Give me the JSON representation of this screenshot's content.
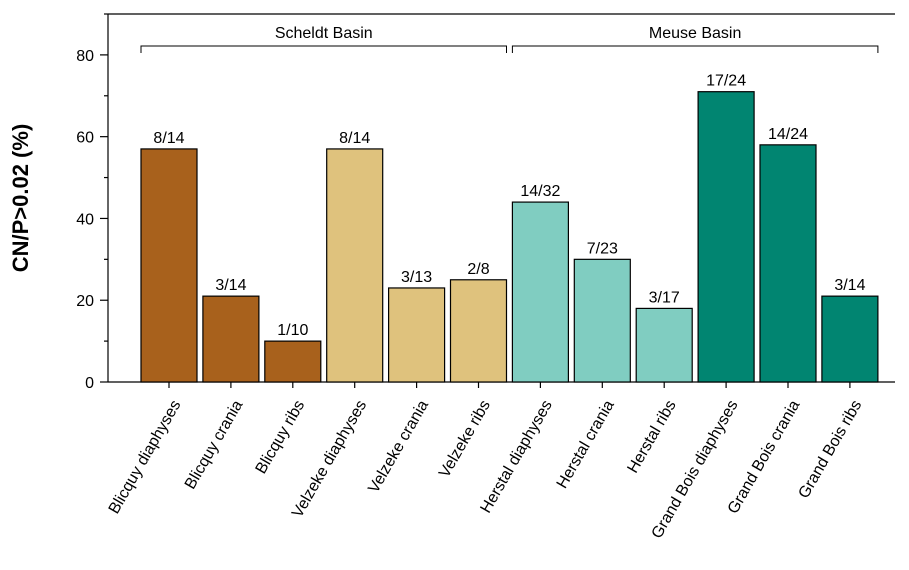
{
  "chart_data": {
    "type": "bar",
    "ylabel": "CN/P>0.02 (%)",
    "ylim": [
      0,
      90
    ],
    "yticks": [
      0,
      20,
      40,
      60,
      80
    ],
    "grid": false,
    "categories": [
      "Blicquy diaphyses",
      "Blicquy crania",
      "Blicquy ribs",
      "Velzeke diaphyses",
      "Velzeke crania",
      "Velzeke ribs",
      "Herstal diaphyses",
      "Herstal crania",
      "Herstal ribs",
      "Grand Bois diaphyses",
      "Grand Bois crania",
      "Grand Bois ribs"
    ],
    "values": [
      57,
      21,
      10,
      57,
      23,
      25,
      44,
      30,
      18,
      71,
      58,
      21
    ],
    "bar_labels": [
      "8/14",
      "3/14",
      "1/10",
      "8/14",
      "3/13",
      "2/8",
      "14/32",
      "7/23",
      "3/17",
      "17/24",
      "14/24",
      "3/14"
    ],
    "colors": [
      "#a8611c",
      "#a8611c",
      "#a8611c",
      "#dfc27d",
      "#dfc27d",
      "#dfc27d",
      "#80cdc1",
      "#80cdc1",
      "#80cdc1",
      "#018571",
      "#018571",
      "#018571"
    ],
    "groups": [
      {
        "label": "Scheldt Basin",
        "start": 0,
        "end": 5
      },
      {
        "label": "Meuse Basin",
        "start": 6,
        "end": 11
      }
    ]
  }
}
